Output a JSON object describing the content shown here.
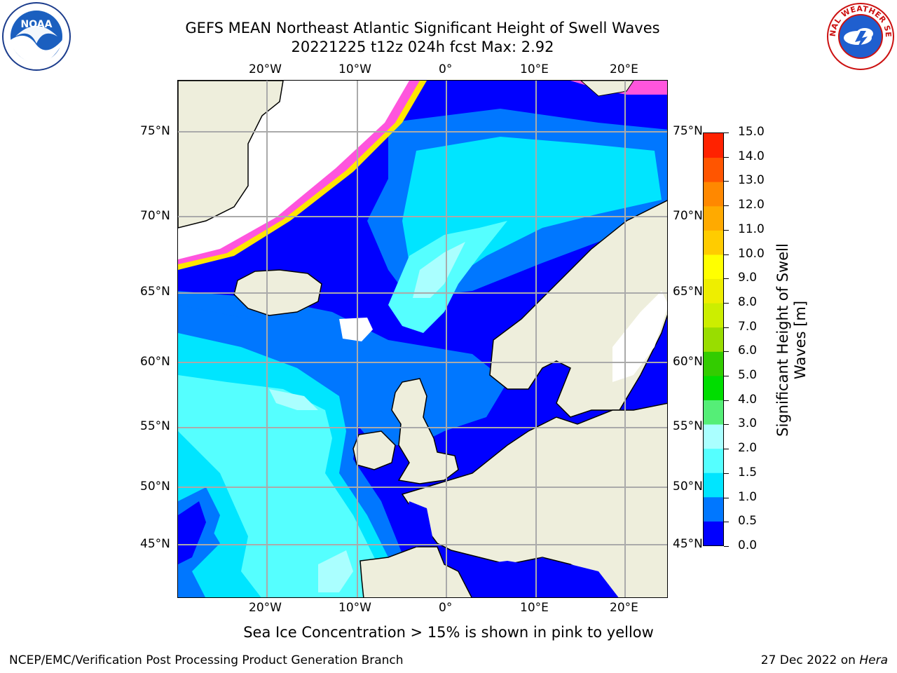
{
  "header": {
    "title_line1": "GEFS MEAN Northeast Atlantic Significant Height of Swell Waves",
    "title_line2": "20221225 t12z 024h fcst   Max: 2.92"
  },
  "logos": {
    "left": {
      "name": "noaa-logo",
      "text": "NOAA"
    },
    "right": {
      "name": "national-weather-service-logo",
      "text": "NATIONAL WEATHER SERVICE"
    }
  },
  "map": {
    "lon_ticks_top": [
      "20°W",
      "10°W",
      "0°",
      "10°E",
      "20°E"
    ],
    "lon_ticks_bottom": [
      "20°W",
      "10°W",
      "0°",
      "10°E",
      "20°E"
    ],
    "lat_ticks_left": [
      "75°N",
      "70°N",
      "65°N",
      "60°N",
      "55°N",
      "50°N",
      "45°N"
    ],
    "lat_ticks_right": [
      "75°N",
      "70°N",
      "65°N",
      "60°N",
      "55°N",
      "50°N",
      "45°N"
    ],
    "colors": {
      "land": "#EEEEDC",
      "ocean_deep": "#0000FF",
      "swell_0_5_1": "#0077FF",
      "swell_1_1_5": "#00E5FF",
      "swell_1_5_2": "#55FFFF",
      "swell_2_3": "#AAFFFF",
      "no_data": "#FFFFFF",
      "ice_pink": "#FF55DD",
      "ice_yellow": "#FFE600",
      "grid": "#AAAAAA"
    }
  },
  "colorbar": {
    "label": "Significant Height of Swell Waves [m]",
    "ticks": [
      "15.0",
      "14.0",
      "13.0",
      "12.0",
      "11.0",
      "10.0",
      "9.0",
      "8.0",
      "7.0",
      "6.0",
      "5.0",
      "4.0",
      "3.0",
      "2.0",
      "1.5",
      "1.0",
      "0.5",
      "0.0"
    ],
    "colors": [
      "#0000FF",
      "#0077FF",
      "#00E5FF",
      "#55FFFF",
      "#AAFFFF",
      "#55EE77",
      "#00DD00",
      "#33CC00",
      "#99DD00",
      "#CCEE00",
      "#EEEE00",
      "#FFFF00",
      "#FFCC00",
      "#FFAA00",
      "#FF8800",
      "#FF5500",
      "#FF2200"
    ]
  },
  "footer": {
    "ice_note": "Sea Ice Concentration > 15% is shown in pink to yellow",
    "credit": "NCEP/EMC/Verification Post Processing Product Generation Branch",
    "date": "27 Dec 2022 on",
    "machine": "Hera"
  }
}
